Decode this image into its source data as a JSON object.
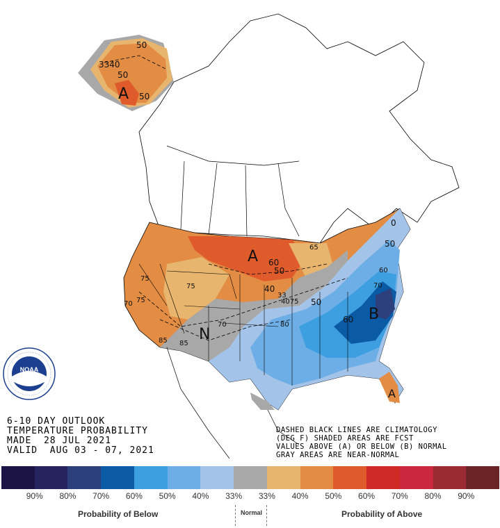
{
  "map": {
    "contour_labels": {
      "ak_top": "50",
      "ak_left": "3340",
      "ak_mid": "50",
      "ak_right": "50",
      "nd_60": "60",
      "nd_50": "50",
      "mw_40": "40",
      "mw_33a": "33",
      "mw_4075": "4075",
      "ca_75a": "75",
      "ca_75b": "75",
      "ca_70": "70",
      "nv_75": "75",
      "sw_85": "85",
      "sw_70": "70",
      "az_85": "85",
      "sw_80": "80",
      "se_50": "50",
      "se_60": "60",
      "ne_50": "50",
      "ne_0": "0",
      "ml_65": "65",
      "ma_70": "70",
      "ma_60": "60"
    },
    "region_letters": {
      "alaska": "A",
      "north_central": "A",
      "southwest": "N",
      "southeast": "B",
      "florida": "A"
    }
  },
  "title": {
    "line1": "6-10 DAY OUTLOOK",
    "line2": "TEMPERATURE PROBABILITY",
    "line3": "MADE  28 JUL 2021",
    "line4": "VALID  AUG 03 - 07, 2021"
  },
  "note": {
    "line1": "DASHED BLACK LINES ARE CLIMATOLOGY",
    "line2": "(DEG F) SHADED AREAS ARE FCST",
    "line3": "VALUES ABOVE (A) OR BELOW (B) NORMAL",
    "line4": "GRAY AREAS ARE NEAR-NORMAL"
  },
  "legend": {
    "colors": [
      "#1b1445",
      "#26245f",
      "#2d3f7c",
      "#0b5aa6",
      "#3d9fe0",
      "#6daee6",
      "#a3c4e8",
      "#a8a8a8",
      "#e8b56e",
      "#e28c44",
      "#e05b2b",
      "#cf2a26",
      "#c9283f",
      "#9a2a34",
      "#6b2426"
    ],
    "percents": [
      "90%",
      "80%",
      "70%",
      "60%",
      "50%",
      "40%",
      "33%",
      "33%",
      "40%",
      "50%",
      "60%",
      "70%",
      "80%",
      "90%"
    ],
    "below_label": "Probability of Below",
    "normal_label": "Normal",
    "above_label": "Probability of Above"
  },
  "logo": {
    "text": "NOAA",
    "ring_text": "NATIONAL OCEANIC AND ATMOSPHERIC ADMINISTRATION · U.S. DEPARTMENT OF COMMERCE"
  }
}
